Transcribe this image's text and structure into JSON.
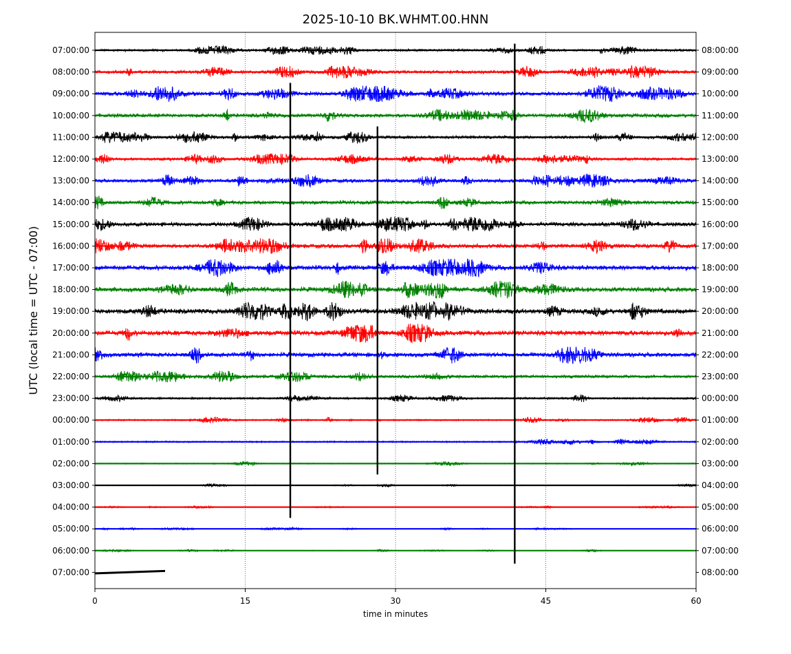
{
  "chart_data": {
    "type": "line",
    "title": "2025-10-10 BK.WHMT.00.HNN",
    "xlabel": "time in minutes",
    "ylabel": "UTC (local time = UTC - 07:00)",
    "xlim": [
      0,
      60
    ],
    "x_ticks": [
      0,
      15,
      30,
      45,
      60
    ],
    "x_tick_labels": [
      "0",
      "15",
      "30",
      "45",
      "60"
    ],
    "grid": "vertical dotted lines at 15, 30, 45",
    "trace_colors": [
      "#000000",
      "#ff0000",
      "#0000ff",
      "#008000"
    ],
    "rows": [
      {
        "left": "07:00:00",
        "right": "08:00:00",
        "amp": 0.45,
        "end_minute": 60
      },
      {
        "left": "08:00:00",
        "right": "09:00:00",
        "amp": 0.65,
        "end_minute": 60
      },
      {
        "left": "09:00:00",
        "right": "10:00:00",
        "amp": 0.85,
        "end_minute": 60
      },
      {
        "left": "10:00:00",
        "right": "11:00:00",
        "amp": 0.75,
        "end_minute": 60
      },
      {
        "left": "11:00:00",
        "right": "12:00:00",
        "amp": 0.6,
        "end_minute": 60
      },
      {
        "left": "12:00:00",
        "right": "13:00:00",
        "amp": 0.55,
        "end_minute": 60
      },
      {
        "left": "13:00:00",
        "right": "14:00:00",
        "amp": 0.7,
        "end_minute": 60
      },
      {
        "left": "14:00:00",
        "right": "15:00:00",
        "amp": 0.75,
        "end_minute": 60
      },
      {
        "left": "15:00:00",
        "right": "16:00:00",
        "amp": 0.8,
        "end_minute": 60
      },
      {
        "left": "16:00:00",
        "right": "17:00:00",
        "amp": 0.8,
        "end_minute": 60
      },
      {
        "left": "17:00:00",
        "right": "18:00:00",
        "amp": 0.95,
        "end_minute": 60
      },
      {
        "left": "18:00:00",
        "right": "19:00:00",
        "amp": 0.95,
        "end_minute": 60
      },
      {
        "left": "19:00:00",
        "right": "20:00:00",
        "amp": 1.0,
        "end_minute": 60
      },
      {
        "left": "20:00:00",
        "right": "21:00:00",
        "amp": 1.0,
        "end_minute": 60
      },
      {
        "left": "21:00:00",
        "right": "22:00:00",
        "amp": 0.9,
        "end_minute": 60
      },
      {
        "left": "22:00:00",
        "right": "23:00:00",
        "amp": 0.6,
        "end_minute": 60
      },
      {
        "left": "23:00:00",
        "right": "00:00:00",
        "amp": 0.4,
        "end_minute": 60
      },
      {
        "left": "00:00:00",
        "right": "01:00:00",
        "amp": 0.3,
        "end_minute": 60
      },
      {
        "left": "01:00:00",
        "right": "02:00:00",
        "amp": 0.3,
        "end_minute": 60
      },
      {
        "left": "02:00:00",
        "right": "03:00:00",
        "amp": 0.2,
        "end_minute": 60
      },
      {
        "left": "03:00:00",
        "right": "04:00:00",
        "amp": 0.15,
        "end_minute": 60
      },
      {
        "left": "04:00:00",
        "right": "05:00:00",
        "amp": 0.12,
        "end_minute": 60
      },
      {
        "left": "05:00:00",
        "right": "06:00:00",
        "amp": 0.12,
        "end_minute": 60
      },
      {
        "left": "06:00:00",
        "right": "07:00:00",
        "amp": 0.12,
        "end_minute": 60
      },
      {
        "left": "07:00:00",
        "right": "08:00:00",
        "amp": 0.1,
        "end_minute": 7
      }
    ],
    "spikes": [
      {
        "minute": 19.5,
        "row_start": 1.5,
        "row_end": 21.5
      },
      {
        "minute": 28.2,
        "row_start": 3.5,
        "row_end": 19.5
      },
      {
        "minute": 41.9,
        "row_start": -0.3,
        "row_end": 23.6
      }
    ]
  }
}
